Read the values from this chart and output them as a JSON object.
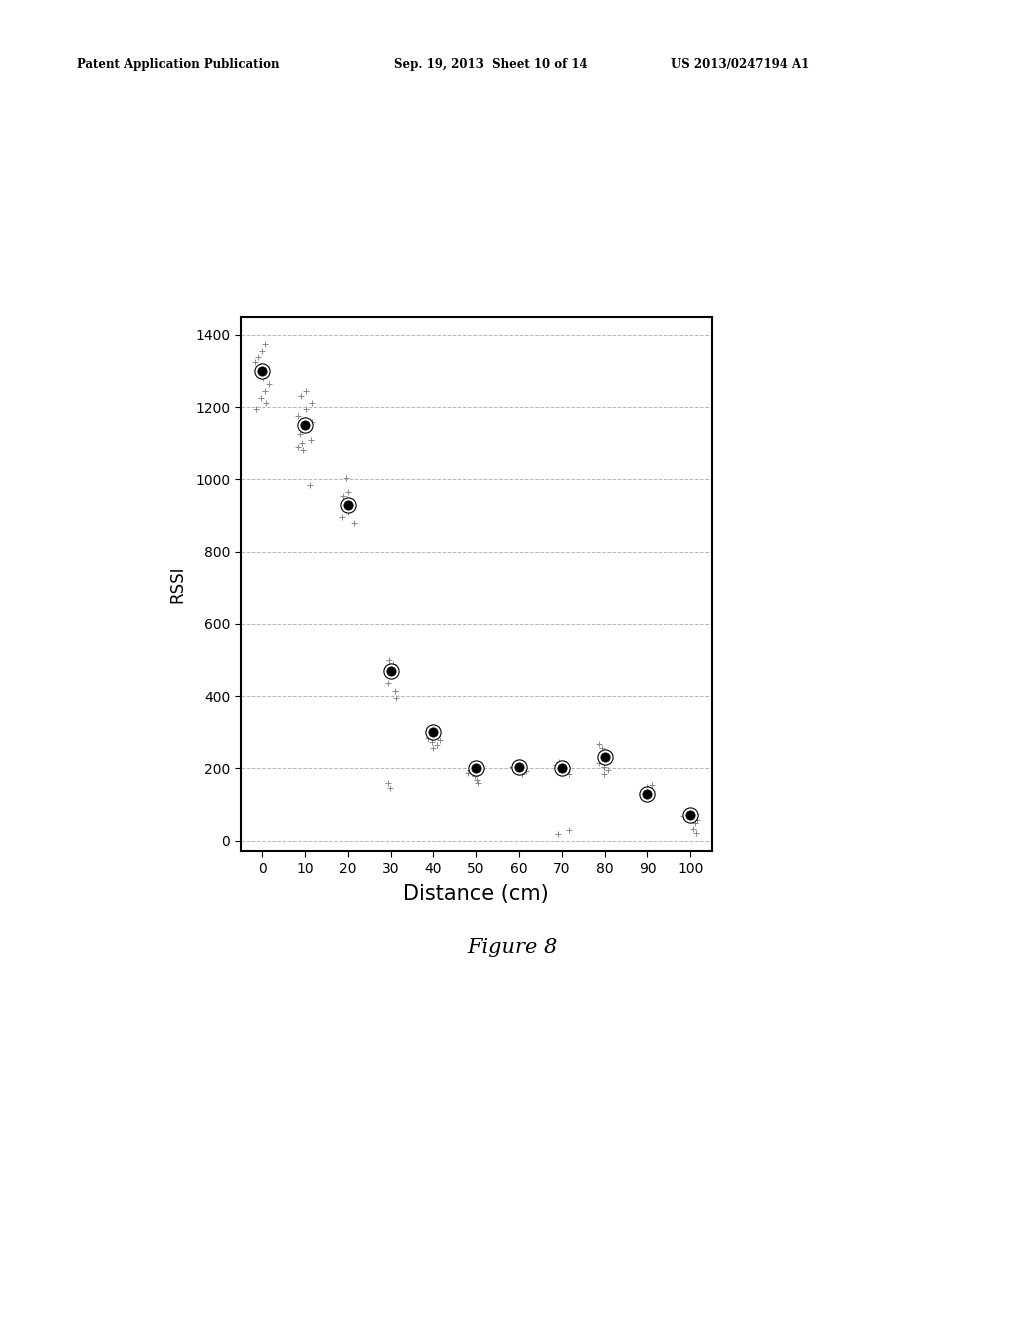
{
  "title": "",
  "xlabel": "Distance (cm)",
  "ylabel": "RSSI",
  "figure_caption": "Figure 8",
  "xlim": [
    -5,
    105
  ],
  "ylim": [
    -30,
    1450
  ],
  "xticks": [
    0,
    10,
    20,
    30,
    40,
    50,
    60,
    70,
    80,
    90,
    100
  ],
  "yticks": [
    0,
    200,
    400,
    600,
    800,
    1000,
    1200,
    1400
  ],
  "main_points": {
    "x": [
      0,
      10,
      20,
      30,
      40,
      50,
      60,
      70,
      80,
      90,
      100
    ],
    "y": [
      1300,
      1150,
      930,
      470,
      300,
      200,
      205,
      200,
      230,
      130,
      70
    ]
  },
  "scatter_clusters": [
    {
      "x": 0,
      "y_values": [
        1195,
        1210,
        1225,
        1245,
        1265,
        1280,
        1310,
        1325,
        1340,
        1355,
        1375
      ]
    },
    {
      "x": 10,
      "y_values": [
        985,
        1080,
        1090,
        1100,
        1110,
        1125,
        1140,
        1160,
        1175,
        1195,
        1210,
        1230,
        1245
      ]
    },
    {
      "x": 20,
      "y_values": [
        880,
        895,
        910,
        925,
        935,
        945,
        955,
        965,
        1005
      ]
    },
    {
      "x": 30,
      "y_values": [
        145,
        160,
        395,
        415,
        435,
        455,
        465,
        472,
        480,
        490,
        500
      ]
    },
    {
      "x": 40,
      "y_values": [
        255,
        265,
        272,
        278,
        284,
        290,
        296,
        302
      ]
    },
    {
      "x": 50,
      "y_values": [
        158,
        168,
        178,
        188,
        196,
        202,
        208
      ]
    },
    {
      "x": 60,
      "y_values": [
        185,
        192,
        198,
        204,
        210,
        216
      ]
    },
    {
      "x": 70,
      "y_values": [
        18,
        28,
        185,
        192,
        198,
        204,
        210,
        218
      ]
    },
    {
      "x": 80,
      "y_values": [
        185,
        195,
        205,
        215,
        225,
        240,
        255,
        268
      ]
    },
    {
      "x": 90,
      "y_values": [
        120,
        125,
        130,
        136,
        142,
        148,
        155
      ]
    },
    {
      "x": 100,
      "y_values": [
        20,
        32,
        48,
        58,
        68,
        74,
        80
      ]
    }
  ],
  "header_left": "Patent Application Publication",
  "header_mid": "Sep. 19, 2013  Sheet 10 of 14",
  "header_right": "US 2013/0247194 A1",
  "background_color": "#ffffff",
  "plot_area_color": "#ffffff",
  "grid_color": "#aaaaaa",
  "scatter_color": "#888888"
}
